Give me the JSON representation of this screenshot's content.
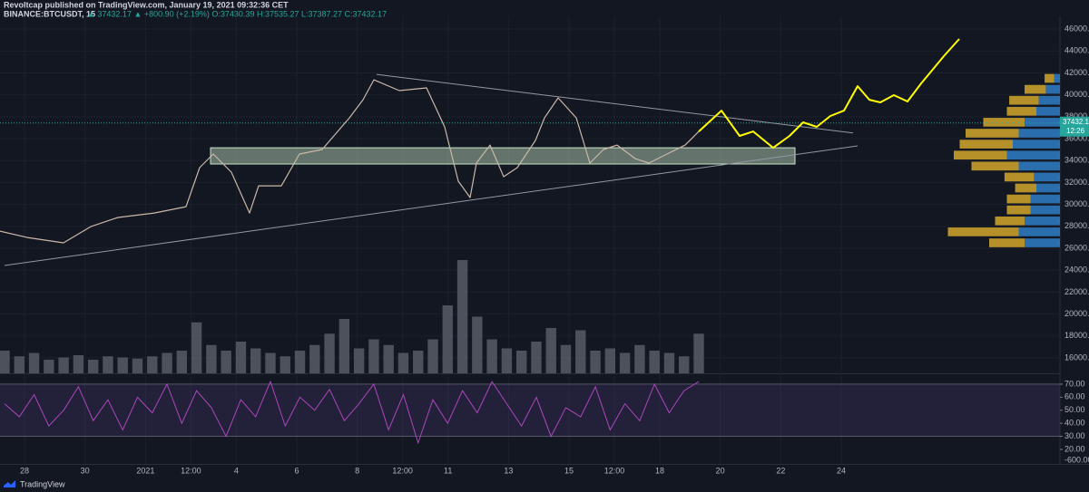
{
  "header": {
    "publisher": "Revoltcap published on TradingView.com, January 19, 2021 09:32:36 CET",
    "symbol": "BINANCE:BTCUSDT, 15",
    "ohlc": "▲ 37432.17 ▲ +800.90 (+2.19%) O:37430.39 H:37535.27 L:37387.27 C:37432.17"
  },
  "footer": "TradingView",
  "chart_data": {
    "type": "line",
    "xlim": [
      -0.81,
      34.23
    ],
    "xticks": [
      {
        "value": 0,
        "label": "28"
      },
      {
        "value": 2,
        "label": "30"
      },
      {
        "value": 4,
        "label": "2021"
      },
      {
        "value": 5.5,
        "label": "12:00"
      },
      {
        "value": 7,
        "label": "4"
      },
      {
        "value": 9,
        "label": "6"
      },
      {
        "value": 11,
        "label": "8"
      },
      {
        "value": 12.5,
        "label": "12:00"
      },
      {
        "value": 14,
        "label": "11"
      },
      {
        "value": 16,
        "label": "13"
      },
      {
        "value": 18,
        "label": "15"
      },
      {
        "value": 19.5,
        "label": "12:00"
      },
      {
        "value": 21,
        "label": "18"
      },
      {
        "value": 23,
        "label": "20"
      },
      {
        "value": 25,
        "label": "22"
      },
      {
        "value": 27,
        "label": "24"
      }
    ],
    "ylim": [
      14600,
      47160
    ],
    "yticks": [
      {
        "value": 46000,
        "label": "46000.00"
      },
      {
        "value": 44000,
        "label": "44000.00"
      },
      {
        "value": 42000,
        "label": "42000.00"
      },
      {
        "value": 40000,
        "label": "40000.00"
      },
      {
        "value": 38000,
        "label": "38000.00"
      },
      {
        "value": 36000,
        "label": "36000.00"
      },
      {
        "value": 34000,
        "label": "34000.00"
      },
      {
        "value": 32000,
        "label": "32000.00"
      },
      {
        "value": 30000,
        "label": "30000.00"
      },
      {
        "value": 28000,
        "label": "28000.00"
      },
      {
        "value": 26000,
        "label": "26000.00"
      },
      {
        "value": 24000,
        "label": "24000.00"
      },
      {
        "value": 22000,
        "label": "22000.00"
      },
      {
        "value": 20000,
        "label": "20000.00"
      },
      {
        "value": 18000,
        "label": "18000.00"
      },
      {
        "value": 16000,
        "label": "16000.00"
      }
    ],
    "grid": true,
    "series": [
      {
        "color": "#c9b8a8",
        "x": [
          -0.81,
          0.09,
          1.29,
          2.19,
          3.09,
          4.29,
          5.34,
          5.79,
          6.24,
          6.84,
          7.44,
          7.74,
          8.49,
          9.09,
          9.84,
          10.74,
          11.19,
          11.55,
          12.39,
          13.29,
          13.89,
          14.34,
          14.73,
          14.94,
          15.39,
          15.84,
          16.29,
          16.89,
          17.19,
          17.64,
          18.24,
          18.69,
          19.14,
          19.59,
          20.19,
          20.64,
          21.24,
          21.84,
          22.29
        ],
        "values": [
          27570,
          26990,
          26500,
          27980,
          28810,
          29220,
          29800,
          33360,
          34600,
          32940,
          29220,
          31700,
          31700,
          34600,
          35010,
          37900,
          39550,
          41370,
          40380,
          40630,
          37070,
          32120,
          30630,
          33770,
          35420,
          32530,
          33360,
          35840,
          37900,
          39720,
          37900,
          33770,
          35010,
          35420,
          34180,
          33770,
          34600,
          35420,
          36660
        ]
      },
      {
        "color": "#ffff00",
        "x": [
          22.29,
          23.04,
          23.64,
          24.09,
          24.75,
          25.29,
          25.74,
          26.19,
          26.64,
          27.09,
          27.54,
          27.93,
          28.29,
          28.74,
          29.19,
          29.64,
          30.39,
          30.9
        ],
        "values": [
          36660,
          38560,
          36250,
          36660,
          35170,
          36250,
          37490,
          37080,
          38070,
          38560,
          40790,
          39550,
          39310,
          39970,
          39390,
          41040,
          43520,
          45090
        ]
      }
    ],
    "trendlines": [
      {
        "x": [
          11.64,
          27.39
        ],
        "values": [
          41860,
          36520
        ],
        "color": "#9598a1"
      },
      {
        "x": [
          -0.66,
          27.54
        ],
        "values": [
          24430,
          35340
        ],
        "color": "#9598a1"
      }
    ],
    "zone": {
      "x": [
        6.15,
        25.47
      ],
      "values": [
        33690,
        35170
      ],
      "color": "#c8e6c9"
    },
    "last_price": {
      "value": 37432.17,
      "label": "37432.17",
      "countdown": "12:26",
      "color": "#26a69a"
    },
    "volume": {
      "ylim": [
        0,
        100
      ],
      "color": "#5d606b",
      "values": [
        20,
        15,
        18,
        12,
        14,
        16,
        12,
        15,
        14,
        13,
        15,
        18,
        20,
        45,
        25,
        20,
        28,
        22,
        18,
        15,
        20,
        25,
        35,
        48,
        22,
        30,
        25,
        18,
        20,
        30,
        60,
        100,
        50,
        30,
        22,
        20,
        28,
        40,
        25,
        38,
        20,
        22,
        18,
        25,
        20,
        18,
        15,
        35
      ],
      "ticks": [
        {
          "value": -600,
          "label": "-600.00"
        }
      ]
    },
    "volume_profile": {
      "color_up": "#2f7ec7",
      "color_down": "#d4a72c",
      "xlim": [
        0,
        100
      ],
      "prices": [
        26500,
        27500,
        28500,
        29500,
        30500,
        31500,
        32500,
        33500,
        34500,
        35500,
        36500,
        37500,
        38500,
        39500,
        40500,
        41500
      ],
      "up": [
        30,
        35,
        30,
        25,
        25,
        20,
        22,
        35,
        45,
        40,
        35,
        30,
        20,
        18,
        12,
        5
      ],
      "down": [
        30,
        60,
        25,
        20,
        20,
        18,
        25,
        40,
        45,
        45,
        45,
        35,
        25,
        25,
        18,
        8
      ]
    },
    "rsi": {
      "color": "#ab47bc",
      "ylim": [
        13.75,
        77.6
      ],
      "bands": [
        30,
        70
      ],
      "yticks": [
        {
          "value": 70,
          "label": "70.00"
        },
        {
          "value": 60,
          "label": "60.00"
        },
        {
          "value": 50,
          "label": "50.00"
        },
        {
          "value": 40,
          "label": "40.00"
        },
        {
          "value": 30,
          "label": "30.00"
        },
        {
          "value": 20,
          "label": "20.00"
        }
      ],
      "values": [
        55,
        45,
        62,
        38,
        50,
        68,
        42,
        58,
        35,
        60,
        48,
        70,
        40,
        65,
        52,
        30,
        58,
        45,
        72,
        38,
        60,
        50,
        66,
        42,
        55,
        70,
        35,
        62,
        25,
        58,
        40,
        65,
        48,
        72,
        55,
        38,
        60,
        30,
        52,
        45,
        68,
        35,
        55,
        42,
        70,
        48,
        65,
        72
      ]
    }
  }
}
